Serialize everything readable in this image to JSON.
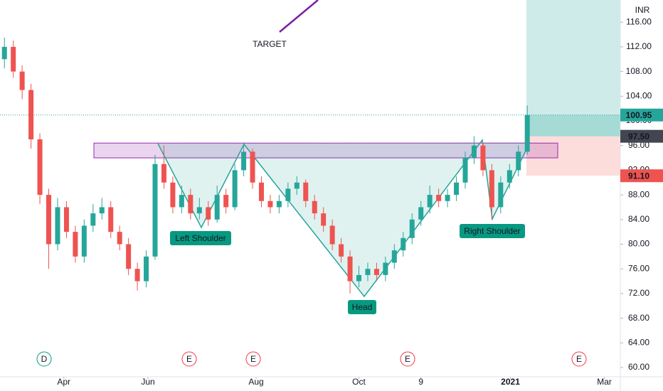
{
  "chart_data": {
    "type": "candlestick",
    "currency": "INR",
    "annotations": {
      "target": "TARGET",
      "left_shoulder": "Left Shoulder",
      "head": "Head",
      "right_shoulder": "Right Shoulder"
    },
    "events": [
      "D",
      "E",
      "E",
      "E",
      "E"
    ],
    "open": [
      110,
      112,
      108,
      105,
      97,
      88,
      80,
      86,
      82,
      78,
      83,
      85,
      86,
      82,
      80,
      76,
      74,
      78,
      93,
      90,
      86,
      88,
      85,
      86,
      84,
      88,
      86,
      92,
      95,
      90,
      87,
      86,
      87,
      89,
      90,
      87,
      85,
      83,
      80,
      78,
      74,
      75,
      76,
      75,
      77,
      79,
      81,
      84,
      86,
      88,
      87,
      88,
      90,
      94,
      96,
      92,
      86,
      90,
      92,
      95
    ],
    "high": [
      113.5,
      113,
      109,
      106,
      98,
      89,
      87.5,
      87,
      83,
      84,
      86.5,
      87.5,
      87,
      83,
      81,
      77,
      79,
      94.5,
      96,
      91,
      89.5,
      89,
      87.5,
      87,
      89.5,
      89,
      93,
      96.5,
      95.5,
      91,
      88,
      88,
      90,
      91,
      90.5,
      88,
      86,
      84,
      81,
      79,
      76.5,
      77,
      77,
      78,
      80,
      82,
      85,
      87,
      89.5,
      89,
      89,
      91,
      95,
      97.5,
      96.5,
      93,
      91,
      93,
      96,
      102.5
    ],
    "low": [
      108.5,
      107,
      103.5,
      95.5,
      86.5,
      76,
      79,
      81,
      77,
      77,
      82,
      84,
      81,
      79,
      75,
      72.5,
      73,
      77.5,
      89,
      85,
      85,
      84,
      84,
      83,
      83.5,
      85,
      85.5,
      91,
      89,
      86,
      85,
      85,
      86,
      88,
      86,
      84,
      82,
      79,
      77,
      72,
      73,
      74,
      74,
      74,
      76,
      78,
      80,
      83,
      85,
      86,
      86,
      87,
      89,
      93,
      91,
      84,
      85,
      89,
      91,
      94.5
    ],
    "close": [
      112,
      108,
      105,
      97,
      88,
      80,
      86,
      82,
      78,
      83,
      85,
      86,
      82,
      80,
      76,
      74,
      78,
      93,
      90,
      86,
      88,
      85,
      86,
      84,
      88,
      86,
      92,
      95,
      90,
      87,
      86,
      87,
      89,
      90,
      87,
      85,
      83,
      80,
      78,
      74,
      75,
      76,
      75,
      77,
      79,
      81,
      84,
      86,
      88,
      87,
      88,
      90,
      94,
      96,
      92,
      86,
      90,
      92,
      95,
      100.95
    ],
    "up_color": "#26a69a",
    "down_color": "#ef5350",
    "xlim": [
      -0.5,
      69.5
    ],
    "xticks": [
      {
        "value": 6.7,
        "label": "Apr"
      },
      {
        "value": 16.2,
        "label": "Jun"
      },
      {
        "value": 28.4,
        "label": "Aug"
      },
      {
        "value": 40.0,
        "label": "Oct"
      },
      {
        "value": 47.0,
        "label": "9"
      },
      {
        "value": 57.1,
        "label": "2021"
      },
      {
        "value": 67.7,
        "label": "Mar"
      }
    ],
    "ylim": [
      58.5,
      119.6
    ],
    "yticks": [
      {
        "value": 60,
        "label": "60.00"
      },
      {
        "value": 64,
        "label": "64.00"
      },
      {
        "value": 68,
        "label": "68.00"
      },
      {
        "value": 72,
        "label": "72.00"
      },
      {
        "value": 76,
        "label": "76.00"
      },
      {
        "value": 80,
        "label": "80.00"
      },
      {
        "value": 84,
        "label": "84.00"
      },
      {
        "value": 88,
        "label": "88.00"
      },
      {
        "value": 92,
        "label": "92.00"
      },
      {
        "value": 96,
        "label": "96.00"
      },
      {
        "value": 100,
        "label": "100.00"
      },
      {
        "value": 104,
        "label": "104.00"
      },
      {
        "value": 108,
        "label": "108.00"
      },
      {
        "value": 112,
        "label": "112.00"
      },
      {
        "value": 116,
        "label": "116.00"
      }
    ],
    "price_labels": [
      {
        "value": 100.95,
        "color": "#26a69a"
      },
      {
        "value": 97.5,
        "label": "97.50",
        "color": "#434651"
      },
      {
        "value": 91.1,
        "label": "91.10",
        "color": "#ef5350"
      }
    ],
    "neckline_zone": [
      94,
      96.4
    ]
  }
}
